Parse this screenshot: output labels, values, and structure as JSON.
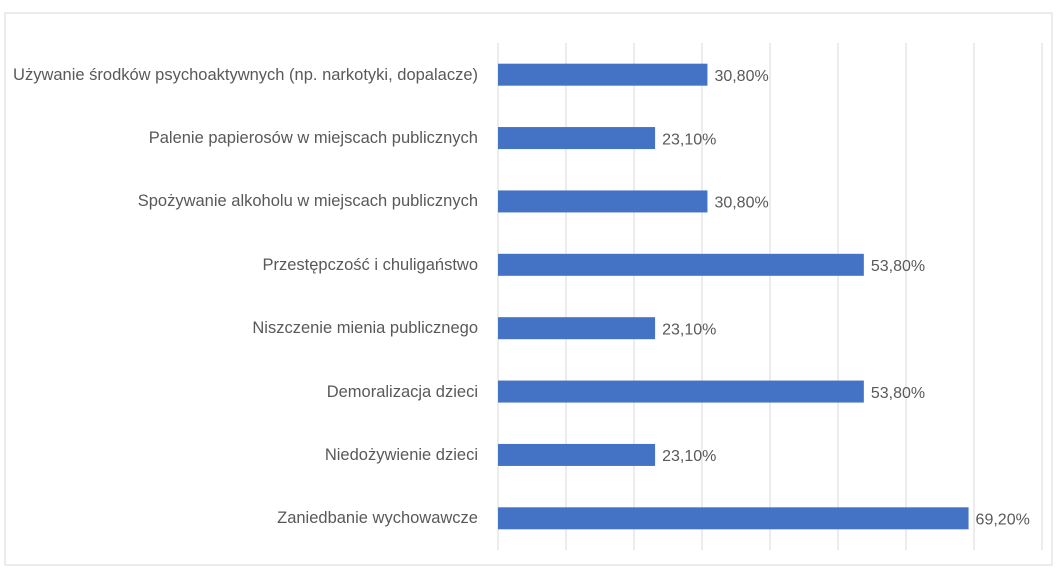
{
  "chart_data": {
    "type": "barh",
    "categories": [
      "Używanie środków psychoaktywnych (np. narkotyki, dopalacze)",
      "Palenie papierosów w miejscach publicznych",
      "Spożywanie alkoholu w miejscach publicznych",
      "Przestępczość i chuligaństwo",
      "Niszczenie mienia publicznego",
      "Demoralizacja dzieci",
      "Niedożywienie dzieci",
      "Zaniedbanie wychowawcze"
    ],
    "values": [
      30.8,
      23.1,
      30.8,
      53.8,
      23.1,
      53.8,
      23.1,
      69.2
    ],
    "value_labels": [
      "30,80%",
      "23,10%",
      "30,80%",
      "53,80%",
      "23,10%",
      "53,80%",
      "23,10%",
      "69,20%"
    ],
    "color": "#4472c4",
    "xlim": [
      0,
      80
    ],
    "xticks": [
      0,
      10,
      20,
      30,
      40,
      50,
      60,
      70,
      80
    ],
    "grid": true
  }
}
